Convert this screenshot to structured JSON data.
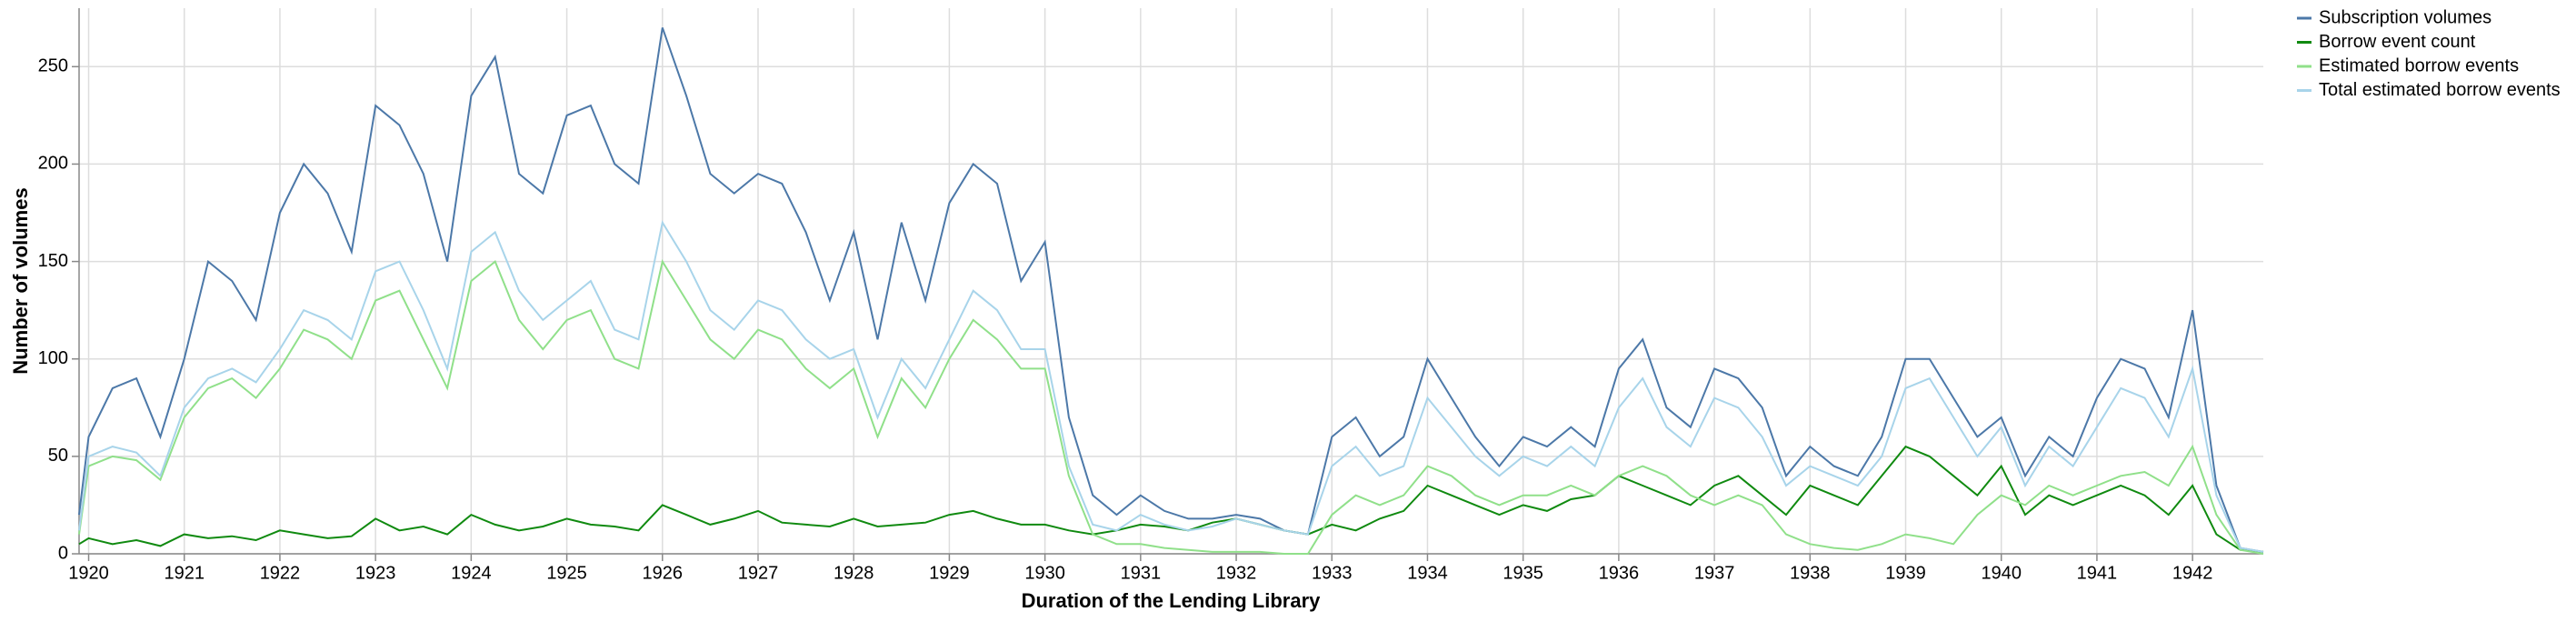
{
  "chart_data": {
    "type": "line",
    "x_label": "Duration of the Lending Library",
    "y_label": "Number of volumes",
    "x": [
      1919.9,
      1920,
      1920.25,
      1920.5,
      1920.75,
      1921,
      1921.25,
      1921.5,
      1921.75,
      1922,
      1922.25,
      1922.5,
      1922.75,
      1923,
      1923.25,
      1923.5,
      1923.75,
      1924,
      1924.25,
      1924.5,
      1924.75,
      1925,
      1925.25,
      1925.5,
      1925.75,
      1926,
      1926.25,
      1926.5,
      1926.75,
      1927,
      1927.25,
      1927.5,
      1927.75,
      1928,
      1928.25,
      1928.5,
      1928.75,
      1929,
      1929.25,
      1929.5,
      1929.75,
      1930,
      1930.25,
      1930.5,
      1930.75,
      1931,
      1931.25,
      1931.5,
      1931.75,
      1932,
      1932.25,
      1932.5,
      1932.75,
      1933,
      1933.25,
      1933.5,
      1933.75,
      1934,
      1934.25,
      1934.5,
      1934.75,
      1935,
      1935.25,
      1935.5,
      1935.75,
      1936,
      1936.25,
      1936.5,
      1936.75,
      1937,
      1937.25,
      1937.5,
      1937.75,
      1938,
      1938.25,
      1938.5,
      1938.75,
      1939,
      1939.25,
      1939.5,
      1939.75,
      1940,
      1940.25,
      1940.5,
      1940.75,
      1941,
      1941.25,
      1941.5,
      1941.75,
      1942,
      1942.25,
      1942.5,
      1942.74
    ],
    "series": [
      {
        "name": "Subscription volumes",
        "color": "#4c78a8",
        "values": [
          20,
          60,
          85,
          90,
          60,
          100,
          150,
          140,
          120,
          175,
          200,
          185,
          155,
          230,
          220,
          195,
          150,
          235,
          255,
          195,
          185,
          225,
          230,
          200,
          190,
          270,
          235,
          195,
          185,
          195,
          190,
          165,
          130,
          165,
          110,
          170,
          130,
          180,
          200,
          190,
          140,
          160,
          70,
          30,
          20,
          30,
          22,
          18,
          18,
          20,
          18,
          12,
          10,
          60,
          70,
          50,
          60,
          100,
          80,
          60,
          45,
          60,
          55,
          65,
          55,
          95,
          110,
          75,
          65,
          95,
          90,
          75,
          40,
          55,
          45,
          40,
          60,
          100,
          100,
          80,
          60,
          70,
          40,
          60,
          50,
          80,
          100,
          95,
          70,
          125,
          35,
          3,
          1
        ]
      },
      {
        "name": "Borrow event count",
        "color": "#108a10",
        "values": [
          5,
          8,
          5,
          7,
          4,
          10,
          8,
          9,
          7,
          12,
          10,
          8,
          9,
          18,
          12,
          14,
          10,
          20,
          15,
          12,
          14,
          18,
          15,
          14,
          12,
          25,
          20,
          15,
          18,
          22,
          16,
          15,
          14,
          18,
          14,
          15,
          16,
          20,
          22,
          18,
          15,
          15,
          12,
          10,
          12,
          15,
          14,
          12,
          16,
          18,
          15,
          12,
          10,
          15,
          12,
          18,
          22,
          35,
          30,
          25,
          20,
          25,
          22,
          28,
          30,
          40,
          35,
          30,
          25,
          35,
          40,
          30,
          20,
          35,
          30,
          25,
          40,
          55,
          50,
          40,
          30,
          45,
          20,
          30,
          25,
          30,
          35,
          30,
          20,
          35,
          10,
          2,
          1
        ]
      },
      {
        "name": "Estimated borrow events",
        "color": "#90e08a",
        "values": [
          10,
          45,
          50,
          48,
          38,
          70,
          85,
          90,
          80,
          95,
          115,
          110,
          100,
          130,
          135,
          110,
          85,
          140,
          150,
          120,
          105,
          120,
          125,
          100,
          95,
          150,
          130,
          110,
          100,
          115,
          110,
          95,
          85,
          95,
          60,
          90,
          75,
          100,
          120,
          110,
          95,
          95,
          40,
          10,
          5,
          5,
          3,
          2,
          1,
          1,
          1,
          0,
          0,
          20,
          30,
          25,
          30,
          45,
          40,
          30,
          25,
          30,
          30,
          35,
          30,
          40,
          45,
          40,
          30,
          25,
          30,
          25,
          10,
          5,
          3,
          2,
          5,
          10,
          8,
          5,
          20,
          30,
          25,
          35,
          30,
          35,
          40,
          42,
          35,
          55,
          20,
          2,
          0
        ]
      },
      {
        "name": "Total estimated borrow events",
        "color": "#a8d4ea",
        "values": [
          12,
          50,
          55,
          52,
          40,
          75,
          90,
          95,
          88,
          105,
          125,
          120,
          110,
          145,
          150,
          125,
          95,
          155,
          165,
          135,
          120,
          130,
          140,
          115,
          110,
          170,
          150,
          125,
          115,
          130,
          125,
          110,
          100,
          105,
          70,
          100,
          85,
          110,
          135,
          125,
          105,
          105,
          45,
          15,
          12,
          20,
          15,
          12,
          14,
          18,
          15,
          12,
          10,
          45,
          55,
          40,
          45,
          80,
          65,
          50,
          40,
          50,
          45,
          55,
          45,
          75,
          90,
          65,
          55,
          80,
          75,
          60,
          35,
          45,
          40,
          35,
          50,
          85,
          90,
          70,
          50,
          65,
          35,
          55,
          45,
          65,
          85,
          80,
          60,
          95,
          30,
          3,
          1
        ]
      }
    ],
    "xlim": [
      1919.9,
      1942.74
    ],
    "xticks": [
      1920,
      1921,
      1922,
      1923,
      1924,
      1925,
      1926,
      1927,
      1928,
      1929,
      1930,
      1931,
      1932,
      1933,
      1934,
      1935,
      1936,
      1937,
      1938,
      1939,
      1940,
      1941,
      1942
    ],
    "ylim": [
      0,
      280
    ],
    "yticks": [
      0,
      50,
      100,
      150,
      200,
      250
    ],
    "grid": true,
    "legend": "right"
  }
}
